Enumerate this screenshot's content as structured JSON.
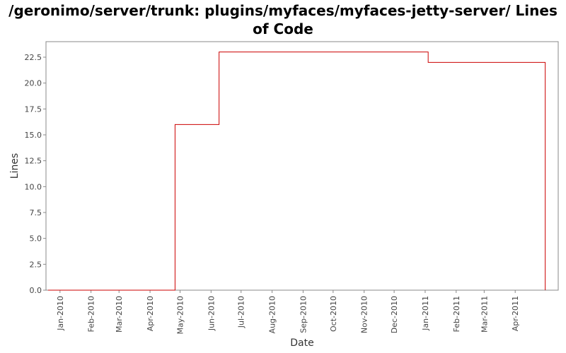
{
  "chart_data": {
    "type": "line",
    "title": "/geronimo/server/trunk: plugins/myfaces/myfaces-jetty-server/ Lines of Code",
    "xlabel": "Date",
    "ylabel": "Lines",
    "ylim": [
      0,
      24
    ],
    "yticks": [
      "0.0",
      "2.5",
      "5.0",
      "7.5",
      "10.0",
      "12.5",
      "15.0",
      "17.5",
      "20.0",
      "22.5"
    ],
    "xticks": [
      "Jan-2010",
      "Feb-2010",
      "Mar-2010",
      "Apr-2010",
      "May-2010",
      "Jun-2010",
      "Jul-2010",
      "Aug-2010",
      "Sep-2010",
      "Oct-2010",
      "Nov-2010",
      "Dec-2010",
      "Jan-2011",
      "Feb-2011",
      "Mar-2011",
      "Apr-2011"
    ],
    "grid": false,
    "line_color": "#cc0000",
    "series": [
      {
        "step": true,
        "x": [
          "2009-12-20",
          "2010-04-26",
          "2010-06-09",
          "2011-01-04",
          "2011-05-01",
          "2011-05-01"
        ],
        "y": [
          0,
          16,
          23,
          22,
          22,
          0
        ]
      }
    ]
  }
}
